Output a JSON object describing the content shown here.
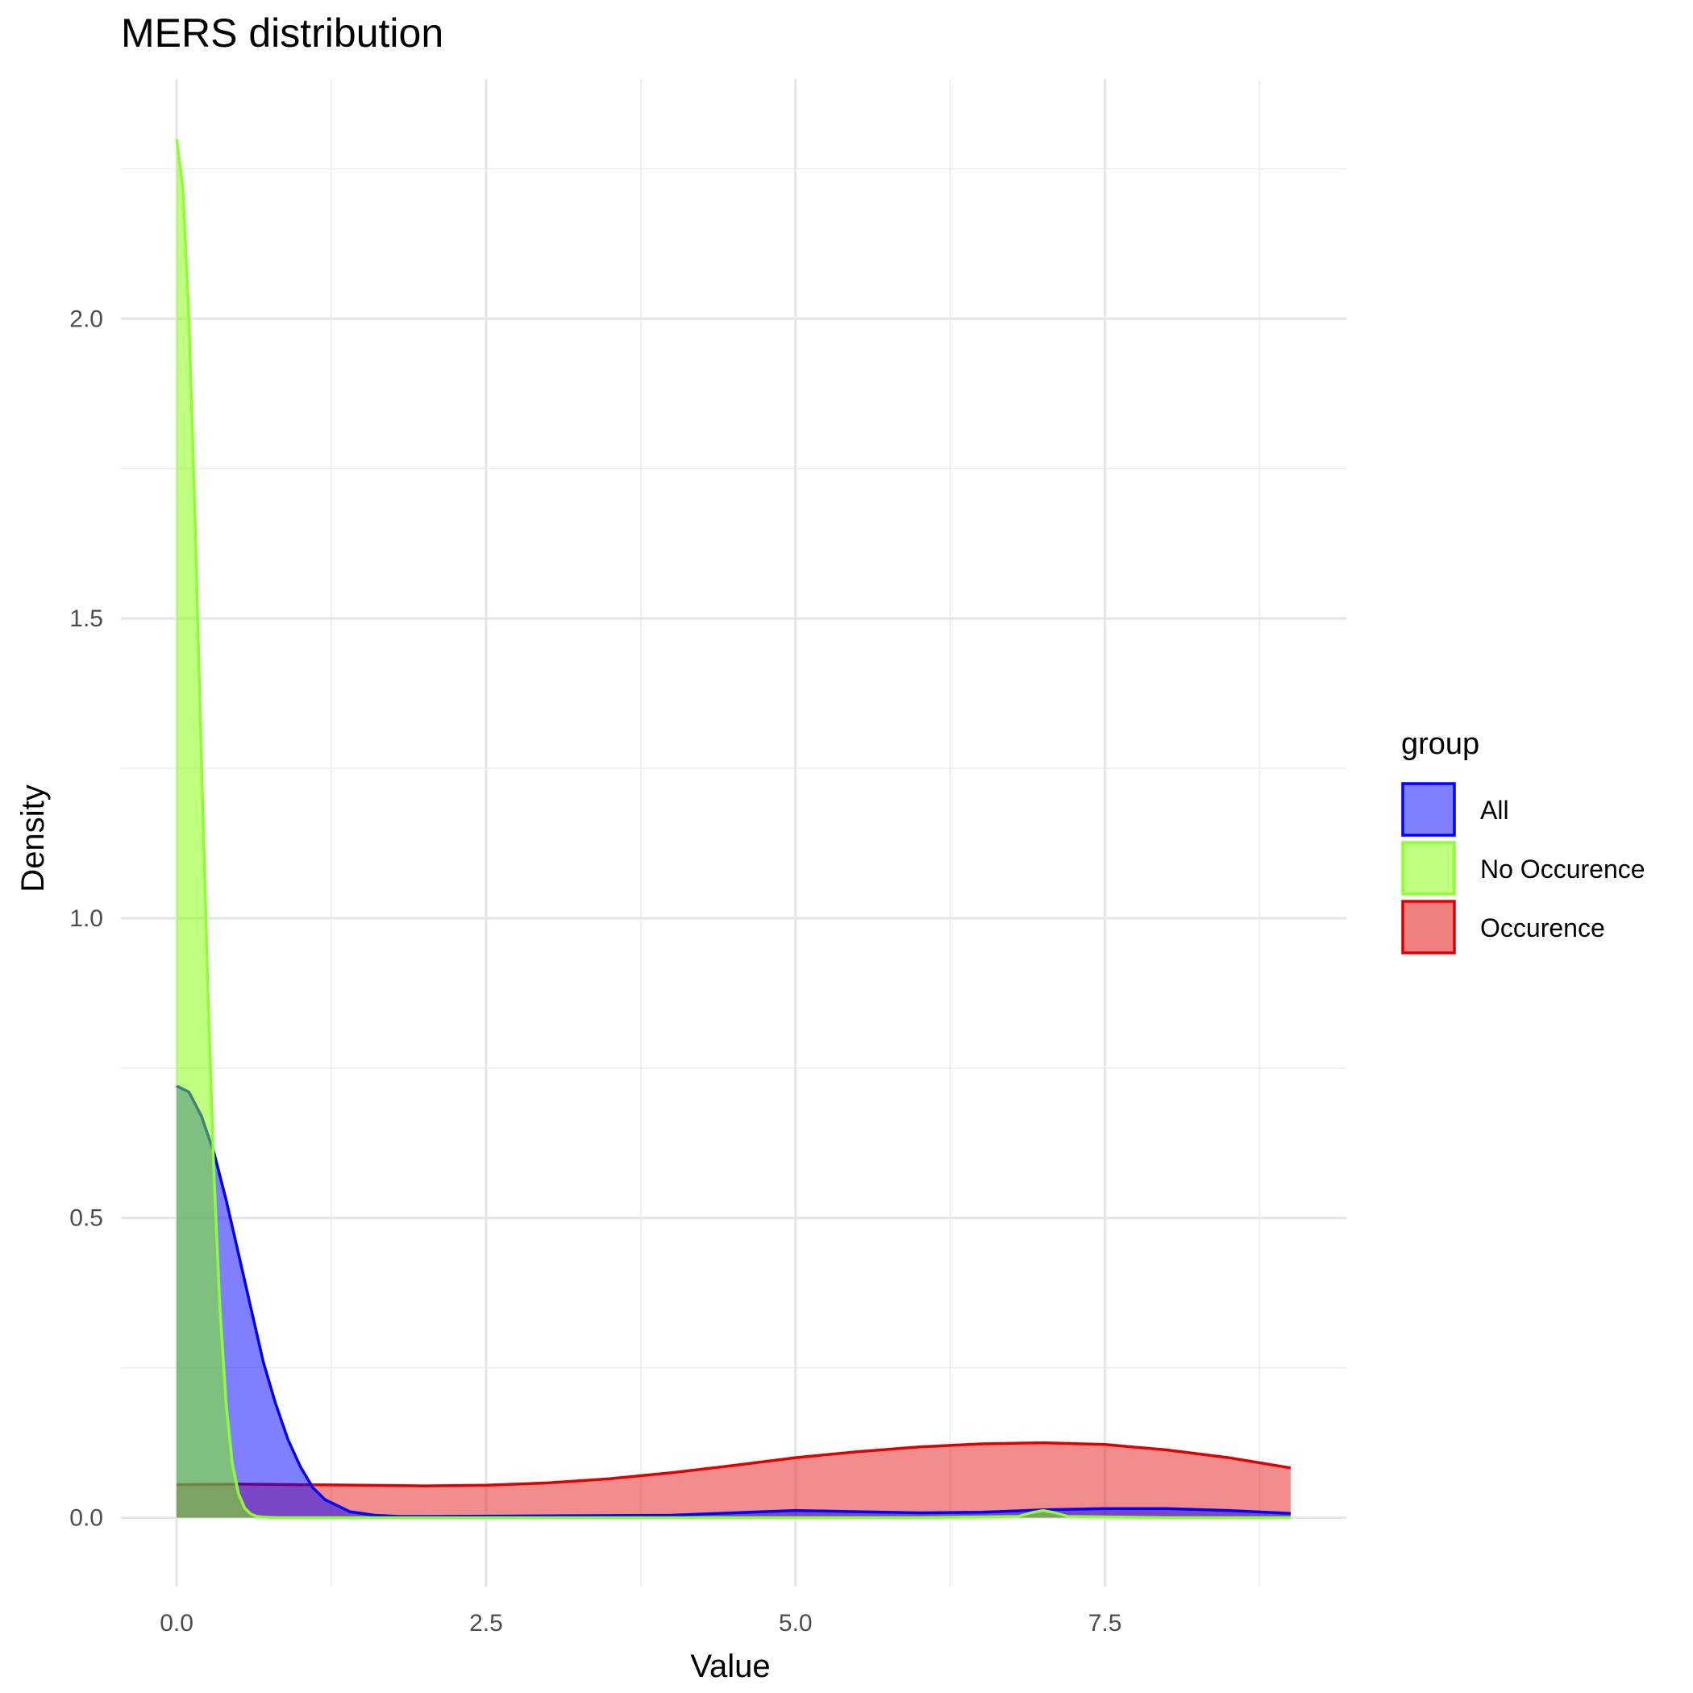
{
  "chart_data": {
    "type": "area",
    "title": "MERS distribution",
    "xlabel": "Value",
    "ylabel": "Density",
    "xlim": [
      -0.45,
      9.45
    ],
    "ylim": [
      -0.115,
      2.4
    ],
    "x_ticks": [
      {
        "value": 0.0,
        "label": "0.0"
      },
      {
        "value": 2.5,
        "label": "2.5"
      },
      {
        "value": 5.0,
        "label": "5.0"
      },
      {
        "value": 7.5,
        "label": "7.5"
      }
    ],
    "x_minor_ticks": [
      1.25,
      3.75,
      6.25,
      8.75
    ],
    "y_ticks": [
      {
        "value": 0.0,
        "label": "0.0"
      },
      {
        "value": 0.5,
        "label": "0.5"
      },
      {
        "value": 1.0,
        "label": "1.0"
      },
      {
        "value": 1.5,
        "label": "1.5"
      },
      {
        "value": 2.0,
        "label": "2.0"
      }
    ],
    "y_minor_ticks": [
      0.25,
      0.75,
      1.25,
      1.75,
      2.25
    ],
    "grid": true,
    "legend": {
      "title": "group",
      "position": "right"
    },
    "series": [
      {
        "name": "Occurence",
        "fill": "#e31a1c",
        "stroke": "#dd0000",
        "x": [
          0,
          0.5,
          1,
          1.5,
          2,
          2.5,
          3,
          3.5,
          4,
          4.5,
          5,
          5.5,
          6,
          6.5,
          7,
          7.5,
          8,
          8.5,
          9
        ],
        "y": [
          0.055,
          0.056,
          0.055,
          0.054,
          0.053,
          0.054,
          0.058,
          0.065,
          0.075,
          0.087,
          0.1,
          0.11,
          0.118,
          0.123,
          0.125,
          0.122,
          0.113,
          0.1,
          0.083
        ]
      },
      {
        "name": "All",
        "fill": "#0000ff",
        "stroke": "#0000ff",
        "x": [
          0,
          0.1,
          0.2,
          0.3,
          0.4,
          0.5,
          0.6,
          0.7,
          0.8,
          0.9,
          1.0,
          1.1,
          1.2,
          1.4,
          1.6,
          1.8,
          2,
          3,
          4,
          4.5,
          5,
          5.5,
          6,
          6.5,
          7,
          7.5,
          8,
          8.5,
          9
        ],
        "y": [
          0.72,
          0.71,
          0.67,
          0.61,
          0.53,
          0.44,
          0.35,
          0.26,
          0.19,
          0.13,
          0.085,
          0.05,
          0.03,
          0.01,
          0.004,
          0.002,
          0.002,
          0.003,
          0.004,
          0.008,
          0.012,
          0.01,
          0.008,
          0.009,
          0.013,
          0.015,
          0.015,
          0.012,
          0.007
        ]
      },
      {
        "name": "No Occurence",
        "fill": "#7fff00",
        "stroke": "#8cff33",
        "x": [
          0,
          0.05,
          0.1,
          0.15,
          0.2,
          0.25,
          0.3,
          0.35,
          0.4,
          0.45,
          0.5,
          0.55,
          0.6,
          0.65,
          0.7,
          0.8,
          1,
          2,
          4,
          6,
          6.8,
          6.9,
          7.0,
          7.1,
          7.2,
          8,
          9
        ],
        "y": [
          2.3,
          2.22,
          2.0,
          1.66,
          1.27,
          0.9,
          0.58,
          0.35,
          0.19,
          0.09,
          0.04,
          0.016,
          0.006,
          0.002,
          0.001,
          0,
          0,
          0,
          0,
          0,
          0.002,
          0.008,
          0.012,
          0.008,
          0.002,
          0,
          0
        ]
      }
    ]
  },
  "legend_colors": {
    "All": {
      "fill": "#7f7fff",
      "stroke": "#0000ff"
    },
    "No Occurence": {
      "fill": "#bfff80",
      "stroke": "#8cff33"
    },
    "Occurence": {
      "fill": "#f07f7f",
      "stroke": "#dd0000"
    }
  }
}
